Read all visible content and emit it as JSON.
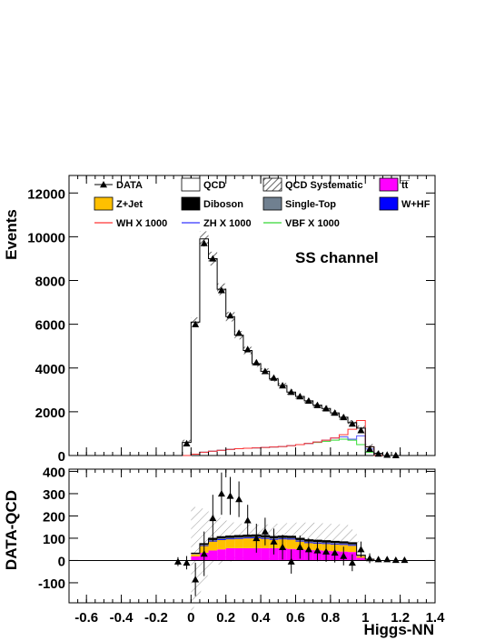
{
  "chart_data": [
    {
      "type": "histogram",
      "panel": "top",
      "annotation": "SS channel",
      "ylabel": "Events",
      "xlim": [
        -0.7,
        1.4
      ],
      "ylim": [
        0,
        12800
      ],
      "x_ticks": [
        "-0.6",
        "-0.4",
        "-0.2",
        "0",
        "0.2",
        "0.4",
        "0.6",
        "0.8",
        "1",
        "1.2",
        "1.4"
      ],
      "y_ticks": [
        "0",
        "2000",
        "4000",
        "6000",
        "8000",
        "10000",
        "12000"
      ],
      "legend": [
        {
          "label": "DATA",
          "style": "marker",
          "color": "#000000"
        },
        {
          "label": "QCD",
          "style": "box",
          "color": "#ffffff"
        },
        {
          "label": "QCD Systematic",
          "style": "hatch",
          "color": "#555555"
        },
        {
          "label": "t̅t̅",
          "style": "box",
          "color": "#ff00ff"
        },
        {
          "label": "Z+Jet",
          "style": "box",
          "color": "#ffc000"
        },
        {
          "label": "Diboson",
          "style": "box",
          "color": "#000000"
        },
        {
          "label": "Single-Top",
          "style": "box",
          "color": "#708090"
        },
        {
          "label": "W+HF",
          "style": "box",
          "color": "#0000ff"
        },
        {
          "label": "WH X 1000",
          "style": "line",
          "color": "#ff0000"
        },
        {
          "label": "ZH X 1000",
          "style": "line",
          "color": "#0000ff"
        },
        {
          "label": "VBF X 1000",
          "style": "line",
          "color": "#00cc00"
        }
      ],
      "bin_edges": [
        -0.7,
        -0.05,
        0.0,
        0.05,
        0.1,
        0.15,
        0.2,
        0.25,
        0.3,
        0.35,
        0.4,
        0.45,
        0.5,
        0.55,
        0.6,
        0.65,
        0.7,
        0.75,
        0.8,
        0.85,
        0.9,
        0.95,
        1.0,
        1.05,
        1.1,
        1.15,
        1.2,
        1.4
      ],
      "qcd_total": [
        0,
        600,
        6100,
        9900,
        9000,
        7600,
        6350,
        5500,
        4800,
        4200,
        3850,
        3500,
        3200,
        2900,
        2700,
        2500,
        2300,
        2150,
        1950,
        1750,
        1500,
        1250,
        400,
        100,
        0,
        0,
        0
      ],
      "signal_wh": [
        0,
        0,
        60,
        150,
        200,
        240,
        280,
        310,
        330,
        350,
        370,
        390,
        410,
        450,
        500,
        550,
        620,
        700,
        800,
        950,
        1200,
        1600,
        400,
        0,
        0,
        0,
        0
      ],
      "signal_zh": [
        0,
        0,
        60,
        150,
        200,
        240,
        280,
        310,
        330,
        350,
        370,
        390,
        410,
        450,
        500,
        550,
        620,
        700,
        800,
        850,
        750,
        900,
        300,
        0,
        0,
        0,
        0
      ],
      "signal_vbf": [
        0,
        0,
        60,
        150,
        200,
        240,
        280,
        310,
        330,
        350,
        370,
        390,
        410,
        450,
        500,
        550,
        600,
        650,
        700,
        750,
        700,
        500,
        150,
        0,
        0,
        0,
        0
      ],
      "data_points": {
        "x": [
          -0.025,
          0.025,
          0.075,
          0.125,
          0.175,
          0.225,
          0.275,
          0.325,
          0.375,
          0.425,
          0.475,
          0.525,
          0.575,
          0.625,
          0.675,
          0.725,
          0.775,
          0.825,
          0.875,
          0.925,
          0.975,
          1.025,
          1.075,
          1.125,
          1.175
        ],
        "y": [
          550,
          6000,
          9700,
          9000,
          7550,
          6400,
          5600,
          4850,
          4250,
          3850,
          3550,
          3200,
          2900,
          2700,
          2500,
          2300,
          2150,
          1950,
          1750,
          1450,
          1150,
          300,
          80,
          30,
          10
        ]
      }
    },
    {
      "type": "histogram",
      "panel": "bottom",
      "ylabel": "DATA-QCD",
      "xlabel": "Higgs-NN",
      "xlim": [
        -0.7,
        1.4
      ],
      "ylim": [
        -190,
        410
      ],
      "x_ticks": [
        "-0.6",
        "-0.4",
        "-0.2",
        "0",
        "0.2",
        "0.4",
        "0.6",
        "0.8",
        "1",
        "1.2",
        "1.4"
      ],
      "y_ticks": [
        "-100",
        "0",
        "100",
        "200",
        "300",
        "400"
      ],
      "bin_edges": [
        0.0,
        0.05,
        0.1,
        0.15,
        0.2,
        0.25,
        0.3,
        0.35,
        0.4,
        0.45,
        0.5,
        0.55,
        0.6,
        0.65,
        0.7,
        0.75,
        0.8,
        0.85,
        0.9,
        0.95,
        1.0,
        1.05,
        1.1
      ],
      "stack": [
        {
          "name": "t̅t̅",
          "color": "#ff00ff",
          "values": [
            18,
            35,
            45,
            50,
            55,
            55,
            55,
            55,
            55,
            55,
            55,
            52,
            50,
            48,
            46,
            44,
            42,
            40,
            38,
            12,
            3,
            0
          ]
        },
        {
          "name": "Z+Jet",
          "color": "#ffc000",
          "values": [
            10,
            30,
            40,
            42,
            40,
            42,
            44,
            45,
            42,
            38,
            40,
            42,
            35,
            30,
            30,
            30,
            30,
            30,
            28,
            8,
            2,
            0
          ]
        },
        {
          "name": "W+HF",
          "color": "#0000ff",
          "values": [
            1,
            3,
            4,
            4,
            4,
            4,
            4,
            4,
            4,
            4,
            4,
            4,
            4,
            4,
            4,
            4,
            4,
            4,
            4,
            1,
            0,
            0
          ]
        },
        {
          "name": "Single-Top",
          "color": "#708090",
          "values": [
            1,
            2,
            3,
            3,
            3,
            3,
            3,
            3,
            3,
            3,
            3,
            3,
            3,
            3,
            3,
            3,
            3,
            3,
            3,
            1,
            0,
            0
          ]
        },
        {
          "name": "Diboson",
          "color": "#000000",
          "values": [
            3,
            6,
            8,
            8,
            8,
            8,
            8,
            8,
            8,
            8,
            8,
            8,
            8,
            8,
            8,
            8,
            7,
            7,
            7,
            2,
            1,
            0
          ]
        }
      ],
      "syst_band": {
        "x": [
          0.0,
          0.05,
          0.1,
          0.15,
          0.2,
          0.25,
          0.3,
          0.4,
          0.5,
          0.6,
          0.7,
          0.8,
          0.9,
          0.95,
          1.0
        ],
        "upper": [
          240,
          240,
          220,
          200,
          180,
          170,
          165,
          160,
          165,
          170,
          170,
          165,
          160,
          120,
          0
        ],
        "lower": [
          -240,
          -150,
          -60,
          -20,
          -10,
          0,
          0,
          0,
          0,
          0,
          0,
          0,
          0,
          0,
          0
        ]
      },
      "data_points": {
        "x": [
          -0.075,
          -0.025,
          0.025,
          0.075,
          0.125,
          0.175,
          0.225,
          0.275,
          0.325,
          0.375,
          0.425,
          0.475,
          0.525,
          0.575,
          0.625,
          0.675,
          0.725,
          0.775,
          0.825,
          0.875,
          0.925,
          0.975,
          1.025,
          1.075,
          1.125,
          1.175,
          1.225
        ],
        "y": [
          -5,
          -10,
          -85,
          30,
          190,
          300,
          290,
          275,
          180,
          100,
          130,
          85,
          60,
          -5,
          60,
          50,
          45,
          40,
          35,
          20,
          -10,
          50,
          10,
          5,
          5,
          2,
          2
        ],
        "err": [
          20,
          30,
          75,
          100,
          105,
          95,
          85,
          80,
          70,
          65,
          62,
          58,
          56,
          54,
          52,
          50,
          48,
          46,
          44,
          42,
          38,
          35,
          22,
          12,
          6,
          4,
          3
        ]
      }
    }
  ]
}
